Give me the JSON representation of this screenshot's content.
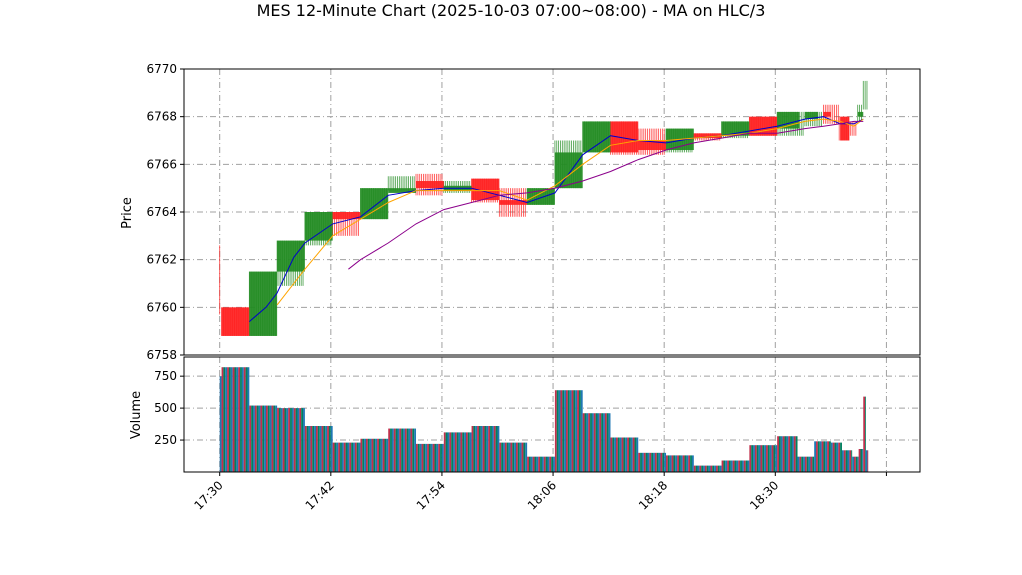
{
  "chart_data": {
    "type": "bar",
    "title": "MES 12-Minute Chart (2025-10-03 07:00~08:00) - MA on HLC/3",
    "price_panel": {
      "ylabel": "Price",
      "ylim": [
        6758,
        6770
      ],
      "yticks": [
        6758,
        6760,
        6762,
        6764,
        6766,
        6768,
        6770
      ],
      "grid": true,
      "ranges": [
        {
          "t": 0.0,
          "low": 6759.7,
          "high": 6762.6,
          "dir": "down"
        },
        {
          "t": 0.2,
          "low": 6758.8,
          "high": 6760.0,
          "dir": "down"
        },
        {
          "t": 3.2,
          "low": 6758.8,
          "high": 6761.5,
          "dir": "up"
        },
        {
          "t": 6.2,
          "low": 6760.9,
          "high": 6762.8,
          "dir": "up"
        },
        {
          "t": 9.2,
          "low": 6762.6,
          "high": 6764.0,
          "dir": "up"
        },
        {
          "t": 12.2,
          "low": 6763.0,
          "high": 6764.0,
          "dir": "down"
        },
        {
          "t": 15.2,
          "low": 6763.7,
          "high": 6765.0,
          "dir": "up"
        },
        {
          "t": 18.2,
          "low": 6764.9,
          "high": 6765.5,
          "dir": "up"
        },
        {
          "t": 21.2,
          "low": 6764.7,
          "high": 6765.6,
          "dir": "down"
        },
        {
          "t": 24.2,
          "low": 6764.8,
          "high": 6765.3,
          "dir": "up"
        },
        {
          "t": 27.2,
          "low": 6764.4,
          "high": 6765.4,
          "dir": "down"
        },
        {
          "t": 30.2,
          "low": 6763.8,
          "high": 6765.0,
          "dir": "down"
        },
        {
          "t": 33.2,
          "low": 6764.3,
          "high": 6765.0,
          "dir": "up"
        },
        {
          "t": 36.2,
          "low": 6765.0,
          "high": 6767.0,
          "dir": "up"
        },
        {
          "t": 39.2,
          "low": 6766.5,
          "high": 6767.8,
          "dir": "up"
        },
        {
          "t": 42.2,
          "low": 6766.4,
          "high": 6767.8,
          "dir": "down"
        },
        {
          "t": 45.2,
          "low": 6766.4,
          "high": 6767.5,
          "dir": "down"
        },
        {
          "t": 48.2,
          "low": 6766.5,
          "high": 6767.5,
          "dir": "up"
        },
        {
          "t": 51.2,
          "low": 6767.0,
          "high": 6767.3,
          "dir": "down"
        },
        {
          "t": 54.2,
          "low": 6767.1,
          "high": 6767.8,
          "dir": "up"
        },
        {
          "t": 57.2,
          "low": 6767.2,
          "high": 6768.0,
          "dir": "down"
        },
        {
          "t": 60.2,
          "low": 6767.2,
          "high": 6768.2,
          "dir": "up"
        },
        {
          "t": 63.2,
          "low": 6767.6,
          "high": 6768.2,
          "dir": "up"
        },
        {
          "t": 65.2,
          "low": 6767.7,
          "high": 6768.5,
          "dir": "down"
        },
        {
          "t": 66.9,
          "low": 6767.0,
          "high": 6768.0,
          "dir": "down"
        },
        {
          "t": 68.1,
          "low": 6767.2,
          "high": 6767.8,
          "dir": "down"
        },
        {
          "t": 68.9,
          "low": 6767.8,
          "high": 6768.5,
          "dir": "up"
        },
        {
          "t": 69.5,
          "low": 6768.3,
          "high": 6769.5,
          "dir": "up"
        }
      ],
      "boxes": [
        {
          "start": 0.2,
          "end": 3.2,
          "open": 6760.0,
          "close": 6758.8,
          "dir": "down"
        },
        {
          "start": 3.2,
          "end": 6.2,
          "open": 6758.8,
          "close": 6761.5,
          "dir": "up"
        },
        {
          "start": 6.2,
          "end": 9.2,
          "open": 6761.5,
          "close": 6762.8,
          "dir": "up"
        },
        {
          "start": 9.2,
          "end": 12.2,
          "open": 6762.8,
          "close": 6764.0,
          "dir": "up"
        },
        {
          "start": 12.2,
          "end": 15.2,
          "open": 6764.0,
          "close": 6763.7,
          "dir": "down"
        },
        {
          "start": 15.2,
          "end": 18.2,
          "open": 6763.7,
          "close": 6765.0,
          "dir": "up"
        },
        {
          "start": 18.2,
          "end": 21.2,
          "open": 6764.8,
          "close": 6765.0,
          "dir": "up"
        },
        {
          "start": 21.2,
          "end": 24.2,
          "open": 6765.3,
          "close": 6765.0,
          "dir": "down"
        },
        {
          "start": 24.2,
          "end": 27.2,
          "open": 6764.9,
          "close": 6765.1,
          "dir": "up"
        },
        {
          "start": 27.2,
          "end": 30.2,
          "open": 6765.4,
          "close": 6764.5,
          "dir": "down"
        },
        {
          "start": 30.2,
          "end": 33.2,
          "open": 6764.5,
          "close": 6764.3,
          "dir": "down"
        },
        {
          "start": 33.2,
          "end": 36.2,
          "open": 6764.3,
          "close": 6765.0,
          "dir": "up"
        },
        {
          "start": 36.2,
          "end": 39.2,
          "open": 6765.0,
          "close": 6766.5,
          "dir": "up"
        },
        {
          "start": 39.2,
          "end": 42.2,
          "open": 6766.5,
          "close": 6767.8,
          "dir": "up"
        },
        {
          "start": 42.2,
          "end": 45.2,
          "open": 6767.8,
          "close": 6766.5,
          "dir": "down"
        },
        {
          "start": 45.2,
          "end": 48.2,
          "open": 6767.0,
          "close": 6766.6,
          "dir": "down"
        },
        {
          "start": 48.2,
          "end": 51.2,
          "open": 6766.6,
          "close": 6767.5,
          "dir": "up"
        },
        {
          "start": 51.2,
          "end": 54.2,
          "open": 6767.3,
          "close": 6767.1,
          "dir": "down"
        },
        {
          "start": 54.2,
          "end": 57.2,
          "open": 6767.2,
          "close": 6767.8,
          "dir": "up"
        },
        {
          "start": 57.2,
          "end": 60.2,
          "open": 6768.0,
          "close": 6767.2,
          "dir": "down"
        },
        {
          "start": 60.2,
          "end": 62.6,
          "open": 6767.5,
          "close": 6768.2,
          "dir": "up"
        },
        {
          "start": 63.2,
          "end": 64.6,
          "open": 6767.9,
          "close": 6768.2,
          "dir": "up"
        },
        {
          "start": 65.2,
          "end": 66.0,
          "open": 6768.2,
          "close": 6768.0,
          "dir": "down"
        },
        {
          "start": 67.0,
          "end": 68.0,
          "open": 6768.0,
          "close": 6767.0,
          "dir": "down"
        },
        {
          "start": 68.9,
          "end": 69.5,
          "open": 6768.0,
          "close": 6768.2,
          "dir": "up"
        }
      ],
      "series": [
        {
          "color": "#0000cc",
          "values": [
            [
              3.2,
              6759.4
            ],
            [
              5.0,
              6760.0
            ],
            [
              6.2,
              6760.6
            ],
            [
              8.0,
              6762.1
            ],
            [
              9.2,
              6762.7
            ],
            [
              12.2,
              6763.5
            ],
            [
              15.2,
              6763.8
            ],
            [
              18.2,
              6764.7
            ],
            [
              21.2,
              6764.9
            ],
            [
              24.2,
              6765.0
            ],
            [
              27.2,
              6765.0
            ],
            [
              30.2,
              6764.7
            ],
            [
              33.2,
              6764.4
            ],
            [
              36.2,
              6764.8
            ],
            [
              39.2,
              6766.4
            ],
            [
              42.2,
              6767.2
            ],
            [
              45.2,
              6767.0
            ],
            [
              48.2,
              6766.9
            ],
            [
              51.2,
              6767.1
            ],
            [
              54.2,
              6767.2
            ],
            [
              57.2,
              6767.4
            ],
            [
              60.2,
              6767.6
            ],
            [
              63.2,
              6767.9
            ],
            [
              65.2,
              6768.0
            ],
            [
              67.0,
              6767.7
            ],
            [
              68.5,
              6767.7
            ],
            [
              69.5,
              6767.9
            ]
          ]
        },
        {
          "color": "#ffa500",
          "values": [
            [
              6.2,
              6760.1
            ],
            [
              9.2,
              6761.6
            ],
            [
              12.2,
              6763.0
            ],
            [
              15.2,
              6763.7
            ],
            [
              18.2,
              6764.4
            ],
            [
              21.2,
              6764.9
            ],
            [
              24.2,
              6764.9
            ],
            [
              27.2,
              6764.9
            ],
            [
              30.2,
              6764.9
            ],
            [
              33.2,
              6764.5
            ],
            [
              36.2,
              6765.1
            ],
            [
              39.2,
              6766.0
            ],
            [
              42.2,
              6766.8
            ],
            [
              45.2,
              6767.0
            ],
            [
              48.2,
              6767.0
            ],
            [
              51.2,
              6767.1
            ],
            [
              54.2,
              6767.2
            ],
            [
              57.2,
              6767.3
            ],
            [
              60.2,
              6767.5
            ],
            [
              63.2,
              6767.8
            ],
            [
              65.2,
              6767.9
            ],
            [
              67.0,
              6767.8
            ],
            [
              68.5,
              6767.6
            ],
            [
              69.5,
              6767.9
            ]
          ]
        },
        {
          "color": "#8b008b",
          "values": [
            [
              13.9,
              6761.6
            ],
            [
              15.2,
              6762.0
            ],
            [
              18.2,
              6762.7
            ],
            [
              21.2,
              6763.5
            ],
            [
              24.2,
              6764.1
            ],
            [
              27.2,
              6764.4
            ],
            [
              30.2,
              6764.7
            ],
            [
              33.2,
              6764.8
            ],
            [
              36.2,
              6765.0
            ],
            [
              39.2,
              6765.3
            ],
            [
              42.2,
              6765.7
            ],
            [
              45.2,
              6766.2
            ],
            [
              48.2,
              6766.6
            ],
            [
              51.2,
              6766.9
            ],
            [
              54.2,
              6767.1
            ],
            [
              57.2,
              6767.3
            ],
            [
              60.2,
              6767.3
            ],
            [
              63.2,
              6767.5
            ],
            [
              65.2,
              6767.6
            ],
            [
              67.0,
              6767.7
            ],
            [
              68.5,
              6767.8
            ],
            [
              69.5,
              6767.8
            ]
          ]
        }
      ]
    },
    "volume_panel": {
      "ylabel": "Volume",
      "ylim": [
        0,
        900
      ],
      "yticks": [
        250,
        500,
        750
      ],
      "grid": true,
      "bars": [
        {
          "start": 0.0,
          "end": 0.2,
          "value": 750
        },
        {
          "start": 0.2,
          "end": 3.2,
          "value": 820
        },
        {
          "start": 3.2,
          "end": 6.2,
          "value": 520
        },
        {
          "start": 6.2,
          "end": 9.2,
          "value": 500
        },
        {
          "start": 9.2,
          "end": 12.2,
          "value": 360
        },
        {
          "start": 12.2,
          "end": 15.2,
          "value": 230
        },
        {
          "start": 15.2,
          "end": 18.2,
          "value": 260
        },
        {
          "start": 18.2,
          "end": 21.2,
          "value": 340
        },
        {
          "start": 21.2,
          "end": 24.2,
          "value": 220
        },
        {
          "start": 24.2,
          "end": 27.2,
          "value": 310
        },
        {
          "start": 27.2,
          "end": 30.2,
          "value": 360
        },
        {
          "start": 30.2,
          "end": 33.2,
          "value": 230
        },
        {
          "start": 33.2,
          "end": 36.2,
          "value": 120
        },
        {
          "start": 36.2,
          "end": 39.2,
          "value": 640
        },
        {
          "start": 39.2,
          "end": 42.2,
          "value": 460
        },
        {
          "start": 42.2,
          "end": 45.2,
          "value": 270
        },
        {
          "start": 45.2,
          "end": 48.2,
          "value": 150
        },
        {
          "start": 48.2,
          "end": 51.2,
          "value": 130
        },
        {
          "start": 51.2,
          "end": 54.2,
          "value": 50
        },
        {
          "start": 54.2,
          "end": 57.2,
          "value": 90
        },
        {
          "start": 57.2,
          "end": 60.2,
          "value": 210
        },
        {
          "start": 60.2,
          "end": 62.4,
          "value": 280
        },
        {
          "start": 62.4,
          "end": 64.2,
          "value": 120
        },
        {
          "start": 64.2,
          "end": 66.0,
          "value": 240
        },
        {
          "start": 66.0,
          "end": 67.2,
          "value": 230
        },
        {
          "start": 67.2,
          "end": 68.3,
          "value": 170
        },
        {
          "start": 68.3,
          "end": 69.0,
          "value": 120
        },
        {
          "start": 69.0,
          "end": 69.5,
          "value": 180
        },
        {
          "start": 69.5,
          "end": 69.75,
          "value": 590
        },
        {
          "start": 69.75,
          "end": 70.0,
          "value": 170
        }
      ]
    },
    "x_axis": {
      "tick_labels": [
        {
          "t": 0,
          "label": "17:30"
        },
        {
          "t": 12,
          "label": "17:42"
        },
        {
          "t": 24,
          "label": "17:54"
        },
        {
          "t": 36,
          "label": "18:06"
        },
        {
          "t": 48,
          "label": "18:18"
        },
        {
          "t": 60,
          "label": "18:30"
        },
        {
          "t": 72,
          "label": ""
        }
      ]
    },
    "colors": {
      "up": "#228b22",
      "down": "#ff2020",
      "volume_a": "#1f78b4",
      "volume_b": "#c0304c",
      "volume_c": "#00805f",
      "grid": "#a0a0a0"
    }
  }
}
